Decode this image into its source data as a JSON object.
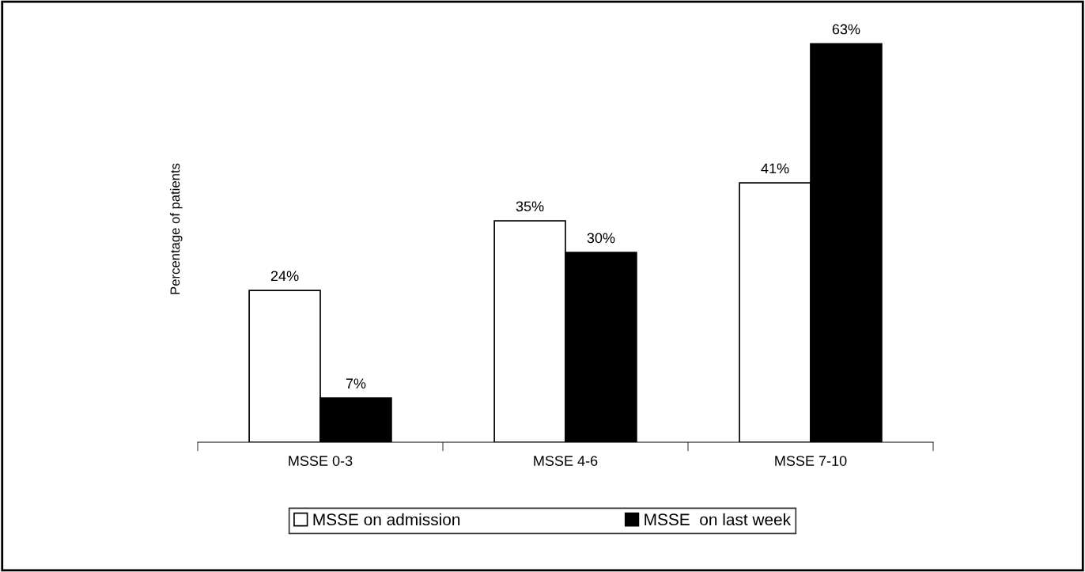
{
  "chart_data": {
    "type": "bar",
    "ylabel": "Percentage of patients",
    "categories": [
      "MSSE 0-3",
      "MSSE 4-6",
      "MSSE 7-10"
    ],
    "series": [
      {
        "name": "MSSE on admission",
        "color": "#ffffff",
        "values": [
          24,
          35,
          41
        ],
        "value_labels": [
          "24%",
          "35%",
          "41%"
        ]
      },
      {
        "name": "MSSE  on last week",
        "color": "#000000",
        "values": [
          7,
          30,
          63
        ],
        "value_labels": [
          "7%",
          "30%",
          "63%"
        ]
      }
    ],
    "legend": "bottom",
    "grid": false
  }
}
